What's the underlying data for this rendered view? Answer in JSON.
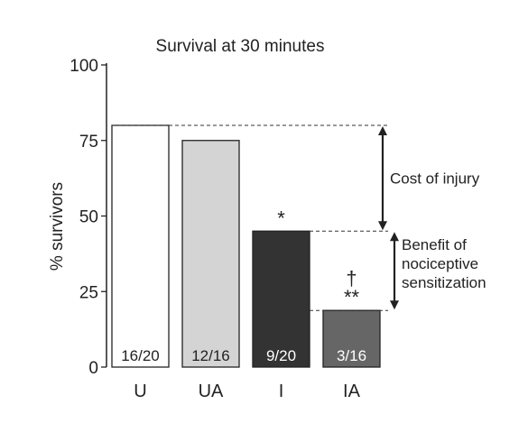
{
  "chart_data": {
    "type": "bar",
    "title": "Survival at 30 minutes",
    "ylabel": "% survivors",
    "xlabel": "",
    "ylim": [
      0,
      100
    ],
    "yticks": [
      0,
      25,
      50,
      75,
      100
    ],
    "grid": false,
    "categories": [
      "U",
      "UA",
      "I",
      "IA"
    ],
    "values": [
      80,
      75,
      45,
      18.75
    ],
    "bar_labels": [
      "16/20",
      "12/16",
      "9/20",
      "3/16"
    ],
    "bar_colors": [
      "#ffffff",
      "#d4d4d4",
      "#333333",
      "#666666"
    ],
    "bar_label_colors": [
      "#222222",
      "#222222",
      "#ffffff",
      "#ffffff"
    ],
    "significance_marks": [
      {
        "category": "I",
        "lines": [
          "*"
        ]
      },
      {
        "category": "IA",
        "lines": [
          "†",
          "**"
        ]
      }
    ],
    "annotations": [
      {
        "label_lines": [
          "Cost of injury"
        ],
        "from": 80,
        "to": 45
      },
      {
        "label_lines": [
          "Benefit of",
          "nociceptive",
          "sensitization"
        ],
        "from": 45,
        "to": 18.75
      }
    ]
  }
}
